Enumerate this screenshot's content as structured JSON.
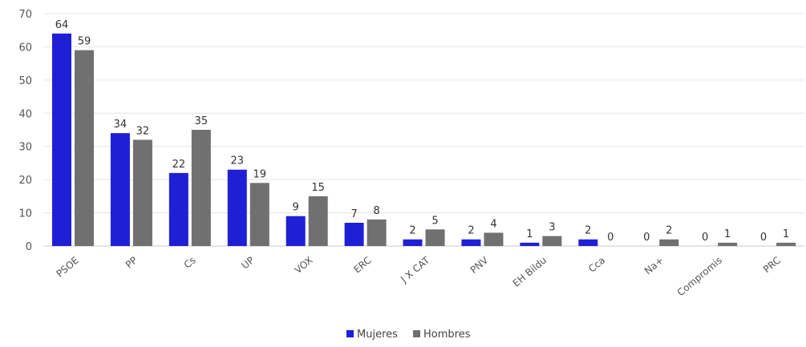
{
  "chart_data": {
    "type": "bar",
    "categories": [
      "PSOE",
      "PP",
      "Cs",
      "UP",
      "VOX",
      "ERC",
      "J X CAT",
      "PNV",
      "EH Bildu",
      "Cca",
      "Na+",
      "Compromis",
      "PRC"
    ],
    "series": [
      {
        "name": "Mujeres",
        "color": "#1f1fd6",
        "values": [
          64,
          34,
          22,
          23,
          9,
          7,
          2,
          2,
          1,
          2,
          0,
          0,
          0
        ]
      },
      {
        "name": "Hombres",
        "color": "#707070",
        "values": [
          59,
          32,
          35,
          19,
          15,
          8,
          5,
          4,
          3,
          0,
          2,
          1,
          1
        ]
      }
    ],
    "ylim": [
      0,
      70
    ],
    "yticks": [
      0,
      10,
      20,
      30,
      40,
      50,
      60,
      70
    ],
    "grid": true,
    "legend_position": "bottom-center"
  }
}
